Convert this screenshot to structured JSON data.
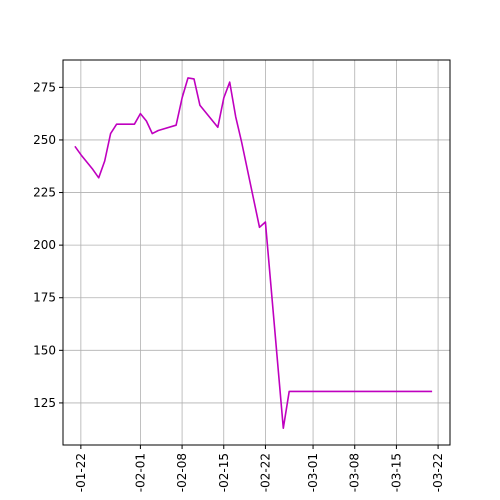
{
  "chart_data": {
    "type": "line",
    "title": "",
    "xlabel": "",
    "ylabel": "",
    "grid": true,
    "x_range": [
      "2024-01-19",
      "2024-03-24"
    ],
    "ylim": [
      105,
      288
    ],
    "x_ticks": [
      {
        "date": "2024-01-22",
        "label": "-01-22"
      },
      {
        "date": "2024-02-01",
        "label": "-02-01"
      },
      {
        "date": "2024-02-08",
        "label": "-02-08"
      },
      {
        "date": "2024-02-15",
        "label": "-02-15"
      },
      {
        "date": "2024-02-22",
        "label": "-02-22"
      },
      {
        "date": "2024-03-01",
        "label": "-03-01"
      },
      {
        "date": "2024-03-08",
        "label": "-03-08"
      },
      {
        "date": "2024-03-15",
        "label": "-03-15"
      },
      {
        "date": "2024-03-22",
        "label": "-03-22"
      }
    ],
    "y_ticks": [
      125,
      150,
      175,
      200,
      225,
      250,
      275
    ],
    "series": [
      {
        "color": "#bf00bf",
        "points": [
          {
            "x": "2024-01-21",
            "y": 247
          },
          {
            "x": "2024-01-22",
            "y": 243
          },
          {
            "x": "2024-01-24",
            "y": 236
          },
          {
            "x": "2024-01-25",
            "y": 232
          },
          {
            "x": "2024-01-26",
            "y": 240
          },
          {
            "x": "2024-01-27",
            "y": 253
          },
          {
            "x": "2024-01-28",
            "y": 257.5
          },
          {
            "x": "2024-01-31",
            "y": 257.5
          },
          {
            "x": "2024-02-01",
            "y": 262.5
          },
          {
            "x": "2024-02-02",
            "y": 259
          },
          {
            "x": "2024-02-03",
            "y": 253
          },
          {
            "x": "2024-02-04",
            "y": 254.5
          },
          {
            "x": "2024-02-07",
            "y": 257
          },
          {
            "x": "2024-02-08",
            "y": 270
          },
          {
            "x": "2024-02-09",
            "y": 279.5
          },
          {
            "x": "2024-02-10",
            "y": 279
          },
          {
            "x": "2024-02-11",
            "y": 266.5
          },
          {
            "x": "2024-02-14",
            "y": 256
          },
          {
            "x": "2024-02-15",
            "y": 270
          },
          {
            "x": "2024-02-16",
            "y": 277.5
          },
          {
            "x": "2024-02-17",
            "y": 261
          },
          {
            "x": "2024-02-18",
            "y": 249
          },
          {
            "x": "2024-02-21",
            "y": 208.5
          },
          {
            "x": "2024-02-22",
            "y": 211
          },
          {
            "x": "2024-02-25",
            "y": 113
          },
          {
            "x": "2024-02-26",
            "y": 130.5
          },
          {
            "x": "2024-03-21",
            "y": 130.5
          }
        ]
      }
    ]
  }
}
